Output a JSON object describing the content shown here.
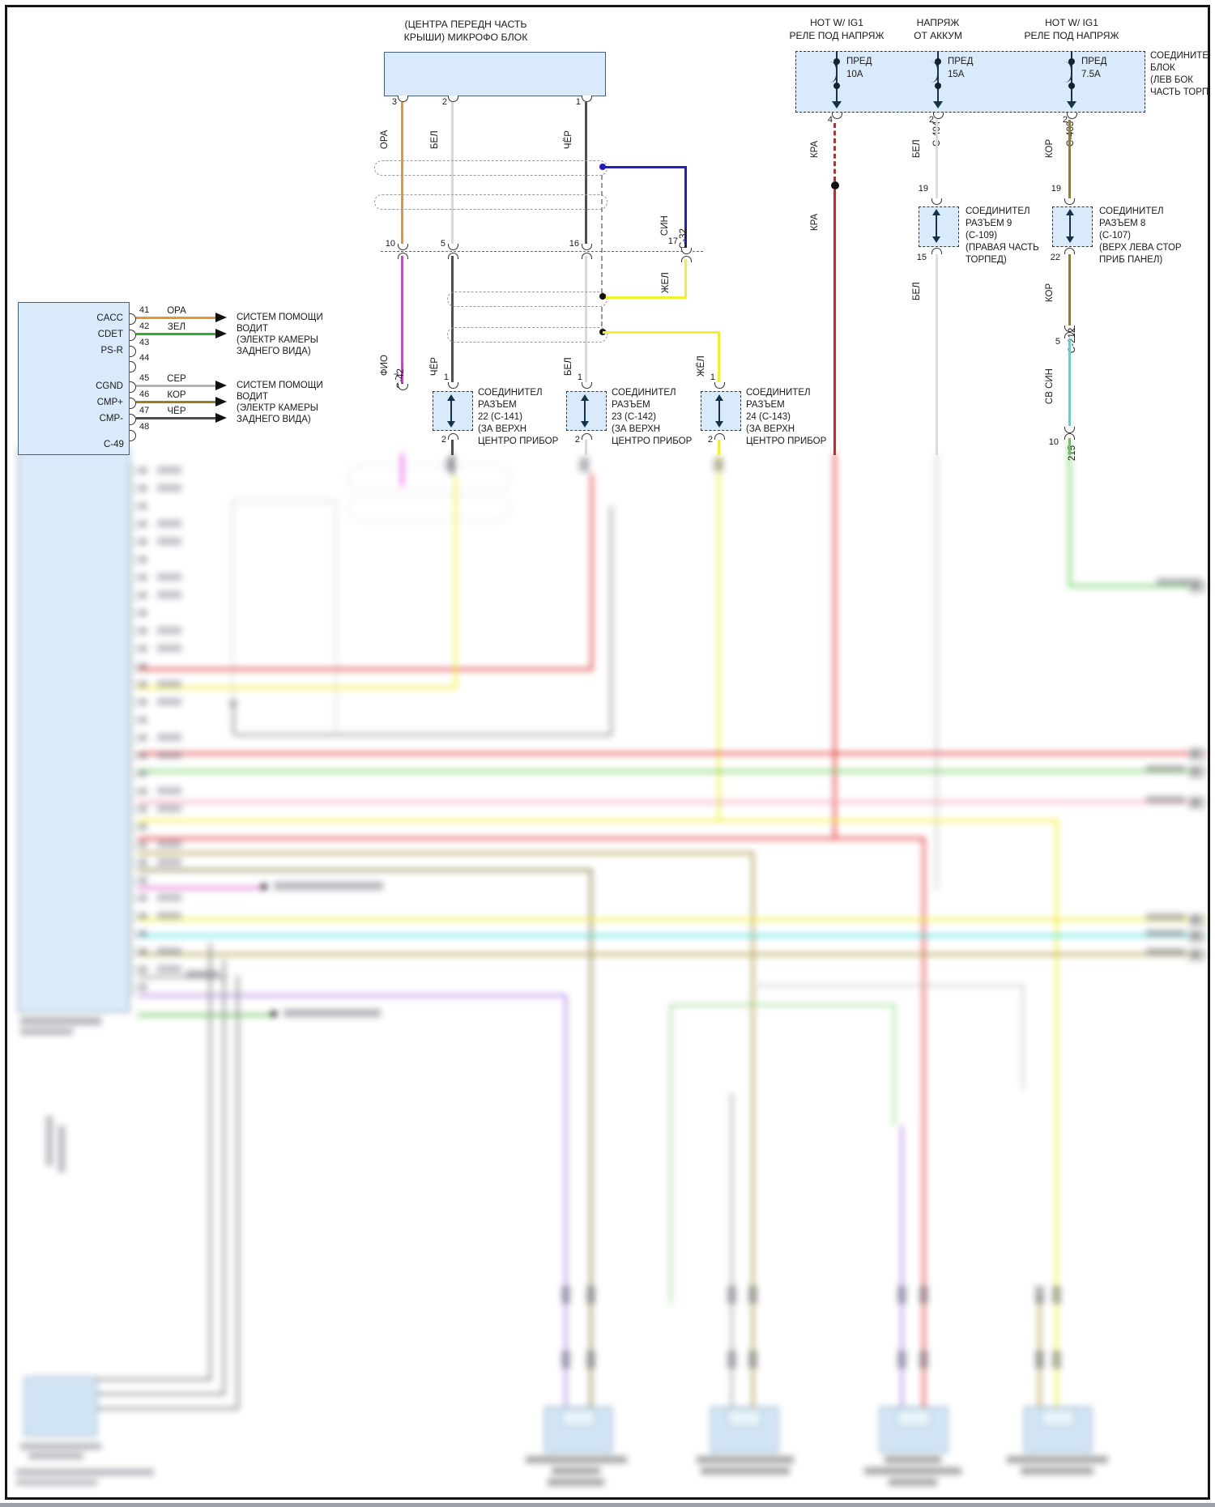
{
  "palette": {
    "block_fill": "#d9ebfa",
    "block_border": "#44617a",
    "ora": "#e8953a",
    "bel": "#d9d9d9",
    "cher": "#4f4f4f",
    "zel": "#3aaa35",
    "ser": "#b5b5b5",
    "kor": "#9c7c1c",
    "fio": "#e832e8",
    "sin": "#2020c0",
    "zhel": "#f2ef30",
    "kra": "#e02020",
    "sv_sin": "#3cdede",
    "sv_zel": "#5ecc55"
  },
  "mic_block": {
    "title_line1": "(ЦЕНТРА ПЕРЕДН ЧАСТЬ",
    "title_line2": "КРЫШИ) МИКРОФО БЛОК",
    "pins": [
      {
        "num": "3",
        "wire": "ОРА"
      },
      {
        "num": "2",
        "wire": "БЕЛ"
      },
      {
        "num": "1",
        "wire": "ЧЁР"
      }
    ]
  },
  "mic_harness": {
    "row_pins": [
      "10",
      "5",
      "16"
    ],
    "sin_branch": {
      "pin": "17",
      "wire": "СИН",
      "connector": "C-32",
      "below_wire": "ЖЕЛ"
    },
    "seg2_wires": [
      "ФИО",
      "ЧЁР",
      "БЕЛ"
    ],
    "seg2_pins": [
      "7",
      "1",
      "1"
    ],
    "c42": "C-42",
    "zhel2": {
      "wire": "ЖЁЛ",
      "pin": "1"
    }
  },
  "connector_row": [
    {
      "lines": [
        "СОЕДИНИТЕЛ",
        "РАЗЪЕМ",
        "22 (C-141)",
        "(ЗА ВЕРХН",
        "ЦЕНТРО ПРИБОР"
      ],
      "pin_top": "1",
      "pin_bottom": "2"
    },
    {
      "lines": [
        "СОЕДИНИТЕЛ",
        "РАЗЪЕМ",
        "23 (C-142)",
        "(ЗА ВЕРХН",
        "ЦЕНТРО ПРИБОР"
      ],
      "pin_top": "1",
      "pin_bottom": "2"
    },
    {
      "lines": [
        "СОЕДИНИТЕЛ",
        "РАЗЪЕМ",
        "24 (C-143)",
        "(ЗА ВЕРХН",
        "ЦЕНТРО ПРИБОР"
      ],
      "pin_top": "1",
      "pin_bottom": "2"
    }
  ],
  "fuse_block": {
    "side_label_lines": [
      "СОЕДИНИТЕ",
      "БЛОК",
      "(ЛЕВ БОК",
      "ЧАСТЬ ТОРП"
    ],
    "fuses": [
      {
        "title_line1": "HOT W/ IG1",
        "title_line2": "РЕЛЕ ПОД НАПРЯЖ",
        "label": "ПРЕД",
        "rating": "10A",
        "pin": "4"
      },
      {
        "title_line1": "НАПРЯЖ",
        "title_line2": "ОТ АККУМ",
        "label": "ПРЕД",
        "rating": "15A",
        "pin": "2",
        "connector": "C-404"
      },
      {
        "title_line1": "HOT W/ IG1",
        "title_line2": "РЕЛЕ ПОД НАПРЯЖ",
        "label": "ПРЕД",
        "rating": "7.5A",
        "pin": "2",
        "connector": "C-403"
      }
    ]
  },
  "kra_branch": {
    "wire_upper": "КРА",
    "wire_lower": "КРА"
  },
  "bel_branch": {
    "wire_upper": "БЕЛ",
    "pin_top": "19",
    "pin_bottom": "15",
    "wire_lower": "БЕЛ",
    "connector_lines": [
      "СОЕДИНИТЕЛ",
      "РАЗЪЕМ 9",
      "(C-109)",
      "(ПРАВАЯ ЧАСТЬ",
      "ТОРПЕД)"
    ]
  },
  "kor_branch": {
    "wire_upper": "КОР",
    "pin_top": "19",
    "pin_bottom": "22",
    "wire_lower": "КОР",
    "connector_lines": [
      "СОЕДИНИТЕЛ",
      "РАЗЪЕМ 8",
      "(C-107)",
      "(ВЕРХ ЛЕВА СТОР",
      "ПРИБ ПАНЕЛ)"
    ],
    "c212_pin": "5",
    "c212_name": "C-212",
    "c212_wire": "СВ СИН",
    "c215_pin": "10",
    "c215_name": "215"
  },
  "ecu_block": {
    "connector_id": "C-49",
    "pins": [
      {
        "name": "CACC",
        "num": "41",
        "wire": "ОРА"
      },
      {
        "name": "CDET",
        "num": "42",
        "wire": "ЗЕЛ"
      },
      {
        "name": "PS-R",
        "num": "43",
        "wire": ""
      },
      {
        "name": "",
        "num": "44",
        "wire": ""
      },
      {
        "name": "CGND",
        "num": "45",
        "wire": "СЕР"
      },
      {
        "name": "CMP+",
        "num": "46",
        "wire": "КОР"
      },
      {
        "name": "CMP-",
        "num": "47",
        "wire": "ЧЁР"
      },
      {
        "name": "",
        "num": "48",
        "wire": ""
      }
    ],
    "target_text_1": [
      "СИСТЕМ ПОМОЩИ",
      "ВОДИТ",
      "(ЭЛЕКТР КАМЕРЫ",
      "ЗАДНЕГО ВИДА)"
    ],
    "target_text_2": [
      "СИСТЕМ ПОМОЩИ",
      "ВОДИТ",
      "(ЭЛЕКТР КАМЕРЫ",
      "ЗАДНЕГО ВИДА)"
    ]
  }
}
